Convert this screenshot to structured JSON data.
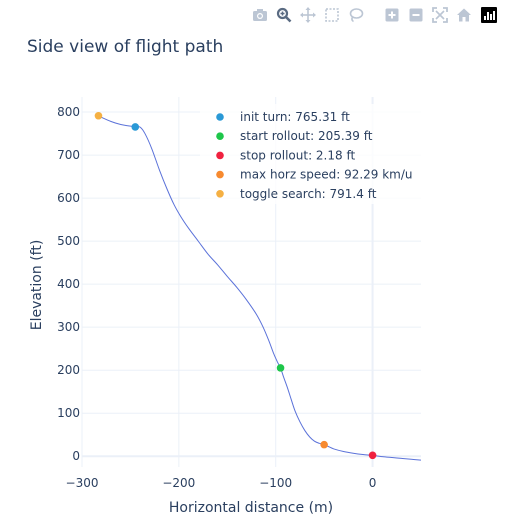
{
  "modebar": {
    "buttons": [
      {
        "name": "camera-icon",
        "title": "Download plot as a png"
      },
      {
        "name": "zoom-icon",
        "title": "Zoom"
      },
      {
        "name": "pan-icon",
        "title": "Pan"
      },
      {
        "name": "box-select-icon",
        "title": "Box Select"
      },
      {
        "name": "lasso-select-icon",
        "title": "Lasso Select"
      },
      {
        "name": "zoom-in-icon",
        "title": "Zoom in"
      },
      {
        "name": "zoom-out-icon",
        "title": "Zoom out"
      },
      {
        "name": "autoscale-icon",
        "title": "Autoscale"
      },
      {
        "name": "reset-axes-icon",
        "title": "Reset axes"
      }
    ],
    "active": "zoom-icon",
    "icon_color": "#bcc6d4",
    "active_color": "#5a6b82"
  },
  "chart_data": {
    "type": "line",
    "title": "Side view of flight path",
    "xlabel": "Horizontal distance (m)",
    "ylabel": "Elevation (ft)",
    "xlim": [
      -300,
      50
    ],
    "ylim": [
      -25,
      835
    ],
    "xticks": [
      -300,
      -200,
      -100,
      0
    ],
    "yticks": [
      0,
      100,
      200,
      300,
      400,
      500,
      600,
      700,
      800
    ],
    "grid": true,
    "line_color": "#5b72d9",
    "path": {
      "x": [
        -283,
        -270,
        -260,
        -252,
        -245,
        -240,
        -235,
        -228,
        -220,
        -212,
        -205,
        -198,
        -190,
        -180,
        -170,
        -160,
        -150,
        -140,
        -130,
        -120,
        -113,
        -107,
        -102,
        -98,
        -95,
        -92,
        -88,
        -84,
        -80,
        -75,
        -70,
        -65,
        -60,
        -55,
        -50,
        -45,
        -40,
        -30,
        -20,
        -10,
        0,
        10,
        20,
        30,
        40,
        50
      ],
      "y": [
        791,
        778,
        771,
        768,
        766,
        765,
        750,
        715,
        665,
        620,
        585,
        557,
        530,
        500,
        470,
        445,
        418,
        392,
        363,
        330,
        300,
        268,
        238,
        218,
        205,
        185,
        160,
        132,
        105,
        80,
        60,
        45,
        35,
        30,
        27,
        22,
        17,
        11,
        7,
        4,
        2,
        -1,
        -3,
        -5,
        -7,
        -9
      ]
    },
    "markers": [
      {
        "label": "init turn: 765.31 ft",
        "x": -245,
        "y": 765.31,
        "color": "#2a99d6"
      },
      {
        "label": "start rollout: 205.39 ft",
        "x": -95,
        "y": 205.39,
        "color": "#1ec64a"
      },
      {
        "label": "stop rollout: 2.18 ft",
        "x": 0,
        "y": 2.18,
        "color": "#f0213f"
      },
      {
        "label": "max horz speed: 92.29 km/u",
        "x": -50,
        "y": 27,
        "color": "#f78a2f"
      },
      {
        "label": "toggle search: 791.4 ft",
        "x": -283,
        "y": 791.4,
        "color": "#f5b043"
      }
    ],
    "legend_position": "top-right"
  }
}
